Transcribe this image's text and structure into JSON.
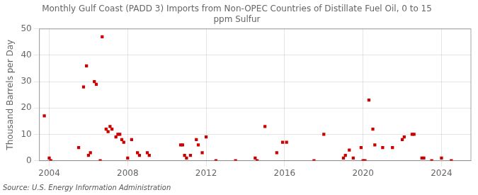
{
  "chart_data": {
    "type": "scatter",
    "title": "Monthly Gulf Coast (PADD 3) Imports from Non-OPEC Countries of Distillate Fuel Oil, 0 to 15\nppm Sulfur",
    "ylabel": "Thousand Barrels per Day",
    "annotations": [
      "Source: U.S. Energy Information Administration"
    ],
    "color": "#cc0000",
    "marker": "square",
    "grid": true,
    "xlim": [
      2003.5,
      2025.5
    ],
    "ylim": [
      0,
      50
    ],
    "xticks": [
      2004,
      2008,
      2012,
      2016,
      2020,
      2024
    ],
    "yticks": [
      0,
      10,
      20,
      30,
      40,
      50
    ],
    "x": [
      2003.75,
      2004.0,
      2004.08,
      2005.5,
      2005.75,
      2005.9,
      2006.0,
      2006.1,
      2006.3,
      2006.4,
      2006.6,
      2006.7,
      2006.9,
      2007.0,
      2007.1,
      2007.2,
      2007.4,
      2007.5,
      2007.6,
      2007.7,
      2007.8,
      2008.0,
      2008.2,
      2008.5,
      2008.6,
      2009.0,
      2009.1,
      2010.7,
      2010.8,
      2010.9,
      2011.0,
      2011.2,
      2011.5,
      2011.6,
      2011.8,
      2012.0,
      2012.5,
      2013.5,
      2014.5,
      2014.6,
      2015.0,
      2015.6,
      2015.9,
      2016.1,
      2017.5,
      2018.0,
      2019.0,
      2019.1,
      2019.3,
      2019.5,
      2019.9,
      2020.0,
      2020.1,
      2020.3,
      2020.5,
      2020.6,
      2021.0,
      2021.5,
      2022.0,
      2022.1,
      2022.5,
      2022.6,
      2023.0,
      2023.1,
      2023.5,
      2024.0,
      2024.5
    ],
    "values": [
      17,
      1,
      0,
      5,
      28,
      36,
      2,
      3,
      30,
      29,
      0,
      47,
      12,
      11,
      13,
      12,
      9,
      10,
      10,
      8,
      7,
      1,
      8,
      3,
      2,
      3,
      2,
      6,
      6,
      2,
      1,
      2,
      8,
      6,
      3,
      9,
      0,
      0,
      1,
      0,
      13,
      3,
      7,
      7,
      0,
      10,
      1,
      2,
      4,
      1,
      5,
      0,
      0,
      23,
      12,
      6,
      5,
      5,
      8,
      9,
      10,
      10,
      1,
      1,
      0,
      1,
      0
    ]
  }
}
